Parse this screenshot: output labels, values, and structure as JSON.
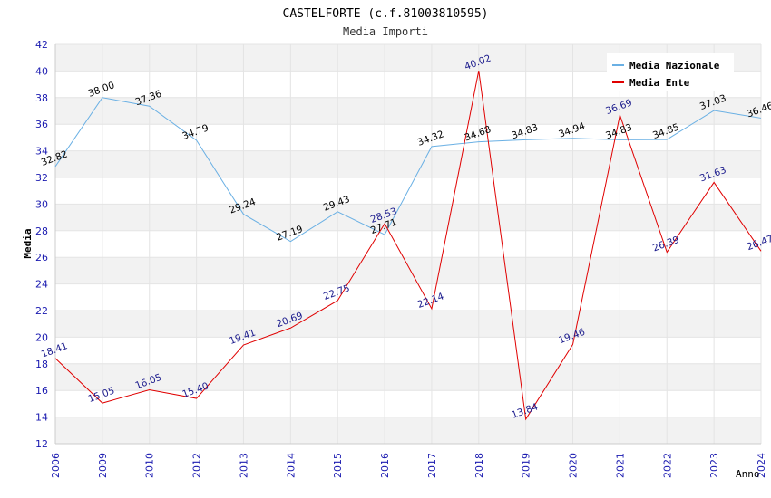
{
  "chart_data": {
    "type": "line",
    "title": "CASTELFORTE (c.f.81003810595)",
    "subtitle": "Media Importi",
    "xlabel": "Anno",
    "ylabel": "Media",
    "ylim": [
      12,
      42
    ],
    "y_ticks": [
      12,
      14,
      16,
      18,
      20,
      22,
      24,
      26,
      28,
      30,
      32,
      34,
      36,
      38,
      40,
      42
    ],
    "categories": [
      "2006",
      "2009",
      "2010",
      "2012",
      "2013",
      "2014",
      "2015",
      "2016",
      "2017",
      "2018",
      "2019",
      "2020",
      "2021",
      "2022",
      "2023",
      "2024"
    ],
    "grid": true,
    "legend_position": "top-right",
    "series": [
      {
        "name": "Media Nazionale",
        "color": "#6ab0e4",
        "label_color": "#000000",
        "values": [
          32.82,
          38.0,
          37.36,
          34.79,
          29.24,
          27.19,
          29.43,
          27.71,
          34.32,
          34.68,
          34.83,
          34.94,
          34.83,
          34.85,
          37.03,
          36.46
        ],
        "labels": [
          "32.82",
          "38.00",
          "37.36",
          "34.79",
          "29.24",
          "27.19",
          "29.43",
          "27.71",
          "34.32",
          "34.68",
          "34.83",
          "34.94",
          "34.83",
          "34.85",
          "37.03",
          "36.46"
        ]
      },
      {
        "name": "Media Ente",
        "color": "#e00000",
        "label_color": "#1a1a8c",
        "values": [
          18.41,
          15.05,
          16.05,
          15.4,
          19.41,
          20.69,
          22.75,
          28.53,
          22.14,
          40.02,
          13.84,
          19.46,
          36.69,
          26.39,
          31.63,
          26.47
        ],
        "labels": [
          "18.41",
          "15.05",
          "16.05",
          "15.40",
          "19.41",
          "20.69",
          "22.75",
          "28.53",
          "22.14",
          "40.02",
          "13.84",
          "19.46",
          "36.69",
          "26.39",
          "31.63",
          "26.47"
        ]
      }
    ]
  }
}
